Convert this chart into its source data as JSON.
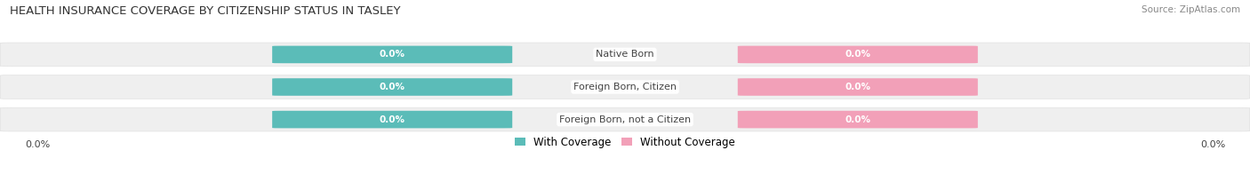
{
  "title": "HEALTH INSURANCE COVERAGE BY CITIZENSHIP STATUS IN TASLEY",
  "source": "Source: ZipAtlas.com",
  "categories": [
    "Native Born",
    "Foreign Born, Citizen",
    "Foreign Born, not a Citizen"
  ],
  "with_coverage": [
    0.0,
    0.0,
    0.0
  ],
  "without_coverage": [
    0.0,
    0.0,
    0.0
  ],
  "color_with": "#5bbcb8",
  "color_without": "#f2a0b8",
  "row_bg_color": "#efefef",
  "row_border_color": "#dddddd",
  "text_color": "#444444",
  "title_color": "#333333",
  "source_color": "#888888",
  "axis_label_left": "0.0%",
  "axis_label_right": "0.0%",
  "legend_with": "With Coverage",
  "legend_without": "Without Coverage",
  "figsize": [
    14.06,
    1.96
  ],
  "dpi": 100
}
